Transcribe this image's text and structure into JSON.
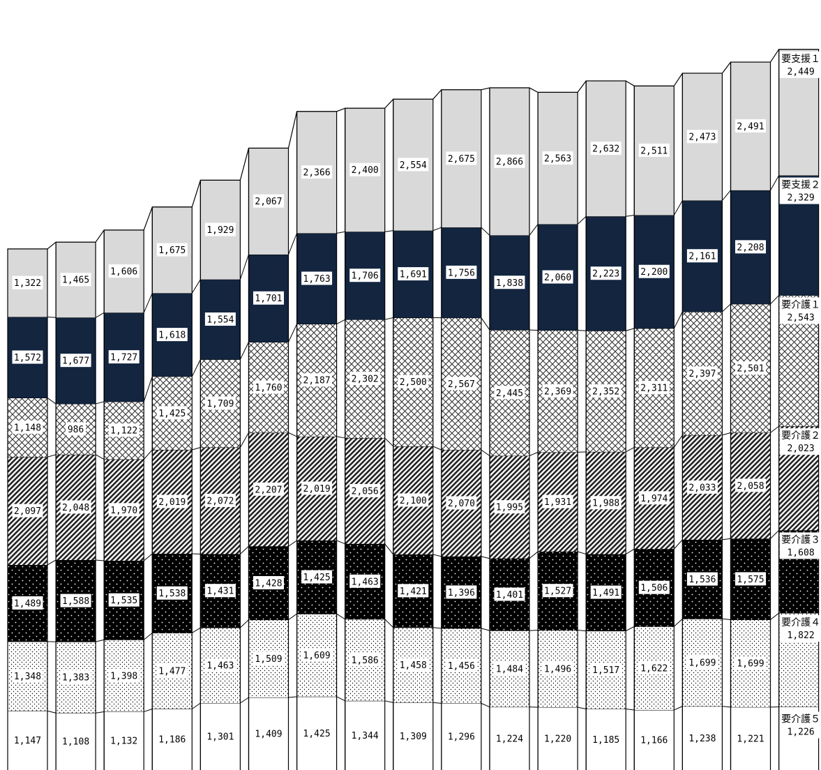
{
  "chart_data": {
    "type": "bar",
    "stacked": true,
    "title": "",
    "xlabel": "",
    "ylabel": "",
    "ylim": [
      0,
      14000
    ],
    "grid": false,
    "legend_position": "right",
    "categories": [
      "",
      "",
      "",
      "",
      "",
      "",
      "",
      "",
      "",
      "",
      "",
      "",
      "",
      "",
      "",
      "",
      ""
    ],
    "series": [
      {
        "name": "要介護５",
        "values": [
          1147,
          1108,
          1132,
          1186,
          1301,
          1409,
          1425,
          1344,
          1309,
          1296,
          1224,
          1220,
          1185,
          1166,
          1238,
          1221,
          1226
        ],
        "labels": [
          "1,147",
          "1,108",
          "1,132",
          "1,186",
          "1,301",
          "1,409",
          "1,425",
          "1,344",
          "1,309",
          "1,296",
          "1,224",
          "1,220",
          "1,185",
          "1,166",
          "1,238",
          "1,221",
          "1,226"
        ],
        "pattern": "white"
      },
      {
        "name": "要介護４",
        "values": [
          1348,
          1383,
          1398,
          1477,
          1463,
          1509,
          1609,
          1586,
          1458,
          1456,
          1484,
          1496,
          1517,
          1622,
          1699,
          1699,
          1822
        ],
        "labels": [
          "1,348",
          "1,383",
          "1,398",
          "1,477",
          "1,463",
          "1,509",
          "1,609",
          "1,586",
          "1,458",
          "1,456",
          "1,484",
          "1,496",
          "1,517",
          "1,622",
          "1,699",
          "1,699",
          "1,822"
        ],
        "pattern": "light-dots"
      },
      {
        "name": "要介護３",
        "values": [
          1489,
          1588,
          1535,
          1538,
          1431,
          1428,
          1425,
          1463,
          1421,
          1396,
          1401,
          1527,
          1491,
          1506,
          1536,
          1575,
          1608
        ],
        "labels": [
          "1,489",
          "1,588",
          "1,535",
          "1,538",
          "1,431",
          "1,428",
          "1,425",
          "1,463",
          "1,421",
          "1,396",
          "1,401",
          "1,527",
          "1,491",
          "1,506",
          "1,536",
          "1,575",
          "1,608"
        ],
        "pattern": "black-dots"
      },
      {
        "name": "要介護２",
        "values": [
          2097,
          2048,
          1970,
          2019,
          2072,
          2207,
          2019,
          2056,
          2100,
          2070,
          1995,
          1931,
          1988,
          1974,
          2033,
          2058,
          2023
        ],
        "labels": [
          "2,097",
          "2,048",
          "1,970",
          "2,019",
          "2,072",
          "2,207",
          "2,019",
          "2,056",
          "2,100",
          "2,070",
          "1,995",
          "1,931",
          "1,988",
          "1,974",
          "2,033",
          "2,058",
          "2,023"
        ],
        "pattern": "diagonal"
      },
      {
        "name": "要介護１",
        "values": [
          1148,
          986,
          1122,
          1425,
          1709,
          1760,
          2187,
          2302,
          2500,
          2567,
          2445,
          2369,
          2352,
          2311,
          2397,
          2501,
          2543
        ],
        "labels": [
          "1,148",
          "986",
          "1,122",
          "1,425",
          "1,709",
          "1,760",
          "2,187",
          "2,302",
          "2,500",
          "2,567",
          "2,445",
          "2,369",
          "2,352",
          "2,311",
          "2,397",
          "2,501",
          "2,543"
        ],
        "pattern": "crosshatch"
      },
      {
        "name": "要支援２",
        "values": [
          1572,
          1677,
          1727,
          1618,
          1554,
          1701,
          1763,
          1706,
          1691,
          1756,
          1838,
          2060,
          2223,
          2200,
          2161,
          2208,
          2329
        ],
        "labels": [
          "1,572",
          "1,677",
          "1,727",
          "1,618",
          "1,554",
          "1,701",
          "1,763",
          "1,706",
          "1,691",
          "1,756",
          "1,838",
          "2,060",
          "2,223",
          "2,200",
          "2,161",
          "2,208",
          "2,329"
        ],
        "pattern": "navy",
        "color": "#13253f"
      },
      {
        "name": "要支援１",
        "values": [
          1322,
          1465,
          1606,
          1675,
          1929,
          2067,
          2366,
          2400,
          2554,
          2675,
          2866,
          2563,
          2632,
          2511,
          2473,
          2491,
          2449
        ],
        "labels": [
          "1,322",
          "1,465",
          "1,606",
          "1,675",
          "1,929",
          "2,067",
          "2,366",
          "2,400",
          "2,554",
          "2,675",
          "2,866",
          "2,563",
          "2,632",
          "2,511",
          "2,473",
          "2,491",
          "2,449"
        ],
        "pattern": "light-gray",
        "color": "#d9d9d9"
      }
    ],
    "legend": [
      {
        "name": "要支援１",
        "value": "2,449"
      },
      {
        "name": "要支援２",
        "value": "2,329"
      },
      {
        "name": "要介護１",
        "value": "2,543"
      },
      {
        "name": "要介護２",
        "value": "2,023"
      },
      {
        "name": "要介護３",
        "value": "1,608"
      },
      {
        "name": "要介護４",
        "value": "1,822"
      },
      {
        "name": "要介護５",
        "value": "1,226"
      }
    ]
  }
}
